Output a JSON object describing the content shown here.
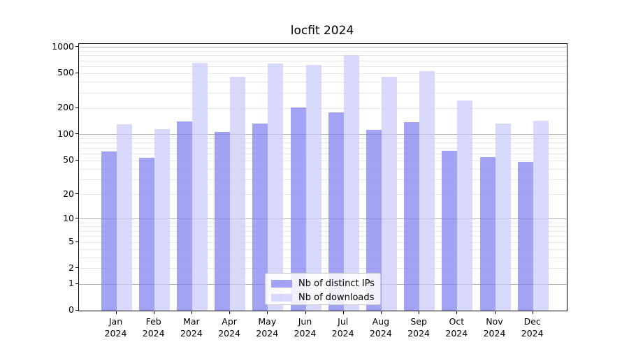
{
  "title": "locfit 2024",
  "chart_data": {
    "type": "bar",
    "title": "locfit 2024",
    "scale": "log1p",
    "grid": true,
    "legend_position": "bottom-center",
    "categories": [
      "Jan",
      "Feb",
      "Mar",
      "Apr",
      "May",
      "Jun",
      "Jul",
      "Aug",
      "Sep",
      "Oct",
      "Nov",
      "Dec"
    ],
    "year": "2024",
    "series": [
      {
        "name": "Nb of distinct IPs",
        "color": "rgba(127,127,240,0.72)",
        "values": [
          64,
          54,
          142,
          107,
          133,
          206,
          181,
          114,
          140,
          65,
          55,
          48
        ]
      },
      {
        "name": "Nb of downloads",
        "color": "rgba(202,202,250,0.72)",
        "values": [
          132,
          115,
          660,
          460,
          645,
          625,
          810,
          463,
          535,
          245,
          135,
          144
        ]
      }
    ],
    "yticks": [
      0,
      1,
      2,
      5,
      10,
      20,
      50,
      100,
      200,
      500,
      1000
    ],
    "major_gridline_values": [
      1,
      10,
      100,
      1000
    ],
    "ylim": [
      0,
      1100
    ],
    "xlabel": "",
    "ylabel": ""
  }
}
